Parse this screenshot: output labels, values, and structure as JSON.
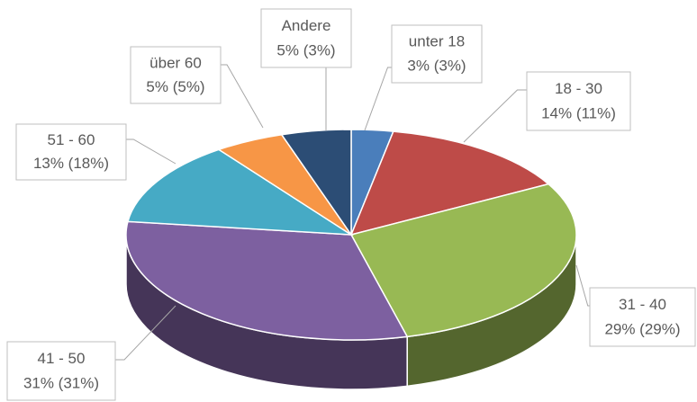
{
  "chart_data": {
    "type": "pie",
    "three_d": true,
    "categories": [
      "unter 18",
      "18 - 30",
      "31 - 40",
      "41 - 50",
      "51 - 60",
      "über 60",
      "Andere"
    ],
    "values": [
      3,
      14,
      29,
      31,
      13,
      5,
      5
    ],
    "value_labels": [
      "3% (3%)",
      "14% (11%)",
      "29% (29%)",
      "31% (31%)",
      "13% (18%)",
      "5% (5%)",
      "5% (3%)"
    ],
    "colors": [
      "#4a7ebb",
      "#be4b48",
      "#98b954",
      "#7d60a0",
      "#46aac5",
      "#f79646",
      "#2c4d75"
    ]
  }
}
